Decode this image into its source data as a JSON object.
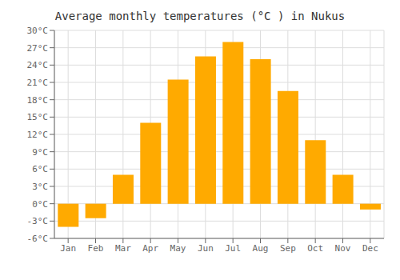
{
  "chart_data": {
    "type": "bar",
    "title": "Average monthly temperatures (°C ) in Nukus",
    "categories": [
      "Jan",
      "Feb",
      "Mar",
      "Apr",
      "May",
      "Jun",
      "Jul",
      "Aug",
      "Sep",
      "Oct",
      "Nov",
      "Dec"
    ],
    "values": [
      -4.0,
      -2.5,
      5.0,
      14.0,
      21.5,
      25.5,
      28.0,
      25.0,
      19.5,
      11.0,
      5.0,
      -1.0
    ],
    "color": "#FFAA00",
    "ylim": [
      -6,
      30
    ],
    "yticks": [
      {
        "value": -6,
        "label": "-6°C"
      },
      {
        "value": -3,
        "label": "-3°C"
      },
      {
        "value": 0,
        "label": "0°C"
      },
      {
        "value": 3,
        "label": "3°C"
      },
      {
        "value": 6,
        "label": "6°C"
      },
      {
        "value": 9,
        "label": "9°C"
      },
      {
        "value": 12,
        "label": "12°C"
      },
      {
        "value": 15,
        "label": "15°C"
      },
      {
        "value": 18,
        "label": "18°C"
      },
      {
        "value": 21,
        "label": "21°C"
      },
      {
        "value": 24,
        "label": "24°C"
      },
      {
        "value": 27,
        "label": "27°C"
      },
      {
        "value": 30,
        "label": "30°C"
      }
    ],
    "grid": true
  }
}
